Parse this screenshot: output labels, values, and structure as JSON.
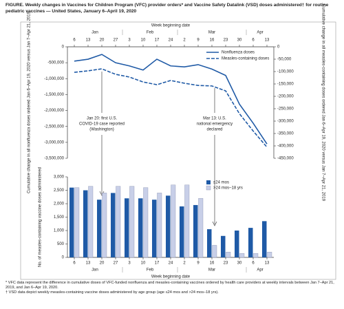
{
  "header": {
    "title": "FIGURE. Weekly changes in Vaccines for Children Program (VFC) provider orders* and Vaccine Safety Datalink (VSD) doses administered† for routine pediatric vaccines — United States, January 6–April 19, 2020"
  },
  "chart_data": [
    {
      "type": "line",
      "x_label": "Week beginning date",
      "y_label": "Cumulative change in all nonfluenza doses ordered Jan 6–Apr 19, 2020 versus Jan 7–Apr 21, 2019",
      "y2_label": "Cumulative change in all measles-containing doses ordered Jan 6–Apr 19, 2020 versus Jan 7–Apr 21, 2019",
      "categories": [
        "6",
        "13",
        "20",
        "27",
        "3",
        "10",
        "17",
        "24",
        "2",
        "9",
        "16",
        "23",
        "30",
        "6",
        "13"
      ],
      "months": [
        "Jan",
        "Feb",
        "Mar",
        "Apr"
      ],
      "ylim": [
        -3500000,
        0
      ],
      "yticks": [
        0,
        {
          "value": -500000,
          "label": "-500,000"
        },
        {
          "value": -1000000,
          "label": "-1,000,000"
        },
        {
          "value": -1500000,
          "label": "-1,500,000"
        },
        {
          "value": -2000000,
          "label": "-2,000,000"
        },
        {
          "value": -2500000,
          "label": "-2,500,000"
        },
        {
          "value": -3000000,
          "label": "-3,000,000"
        },
        {
          "value": -3500000,
          "label": "-3,500,000"
        }
      ],
      "y2lim": [
        -450000,
        0
      ],
      "y2ticks": [
        0,
        {
          "value": -50000,
          "label": "-50,000"
        },
        {
          "value": -100000,
          "label": "-100,000"
        },
        {
          "value": -150000,
          "label": "-150,000"
        },
        {
          "value": -200000,
          "label": "-200,000"
        },
        {
          "value": -250000,
          "label": "-250,000"
        },
        {
          "value": -300000,
          "label": "-300,000"
        },
        {
          "value": -350000,
          "label": "-350,000"
        },
        {
          "value": -400000,
          "label": "-400,000"
        },
        {
          "value": -450000,
          "label": "-450,000"
        }
      ],
      "series": [
        {
          "name": "Nonfluenza doses",
          "color": "#1f5aa6",
          "style": "solid",
          "values": [
            -450000,
            -390000,
            -240000,
            -500000,
            -600000,
            -730000,
            -390000,
            -600000,
            -630000,
            -560000,
            -700000,
            -900000,
            -1800000,
            -2400000,
            -3050000
          ]
        },
        {
          "name": "Measles-containing doses",
          "color": "#1f5aa6",
          "style": "dashed",
          "axis": "y2",
          "values": [
            -103000,
            -97000,
            -89000,
            -111000,
            -122000,
            -142000,
            -153000,
            -136000,
            -147000,
            -156000,
            -158000,
            -178000,
            -270000,
            -340000,
            -405000
          ]
        }
      ],
      "annotations": [
        [
          "Jan 20: first U.S.",
          "COVID-19 case reported",
          "(Washington)"
        ],
        [
          "Mar 13: U.S.",
          "national emergency",
          "declared"
        ]
      ]
    },
    {
      "type": "bar",
      "x_label": "Week beginning date",
      "y_label": "No. of measles-containing vaccine doses administered",
      "categories": [
        "6",
        "13",
        "20",
        "27",
        "3",
        "10",
        "17",
        "24",
        "2",
        "9",
        "16",
        "23",
        "30",
        "6",
        "13"
      ],
      "months": [
        "Jan",
        "Feb",
        "Mar",
        "Apr"
      ],
      "ylim": [
        0,
        3000
      ],
      "yticks": [
        0,
        500,
        {
          "value": 1000,
          "label": "1,000"
        },
        {
          "value": 1500,
          "label": "1,500"
        },
        {
          "value": 2000,
          "label": "2,000"
        },
        {
          "value": 2500,
          "label": "2,500"
        },
        {
          "value": 3000,
          "label": "3,000"
        }
      ],
      "series": [
        {
          "name": "≤24 mos",
          "color": "#1f5aa6",
          "values": [
            2600,
            2500,
            2150,
            2400,
            2200,
            2200,
            2150,
            2300,
            1900,
            1950,
            1050,
            800,
            1000,
            1100,
            1350
          ]
        },
        {
          "name": ">24 mos–18 yrs",
          "color": "#c8cfe8",
          "values": [
            2600,
            2650,
            2400,
            2650,
            2650,
            2600,
            2400,
            2700,
            2700,
            2200,
            450,
            200,
            150,
            150,
            200
          ]
        }
      ]
    }
  ],
  "footnotes": [
    "* VFC data represent the difference in cumulative doses of VFC-funded nonfluenza and measles-containing vaccines ordered by health care providers at weekly intervals between Jan 7–Apr 21, 2019, and Jan 6–Apr 19, 2020.",
    "† VSD data depict weekly measles-containing vaccine doses administered by age group (age ≤24 mos and >24 mos–18 yrs)."
  ]
}
